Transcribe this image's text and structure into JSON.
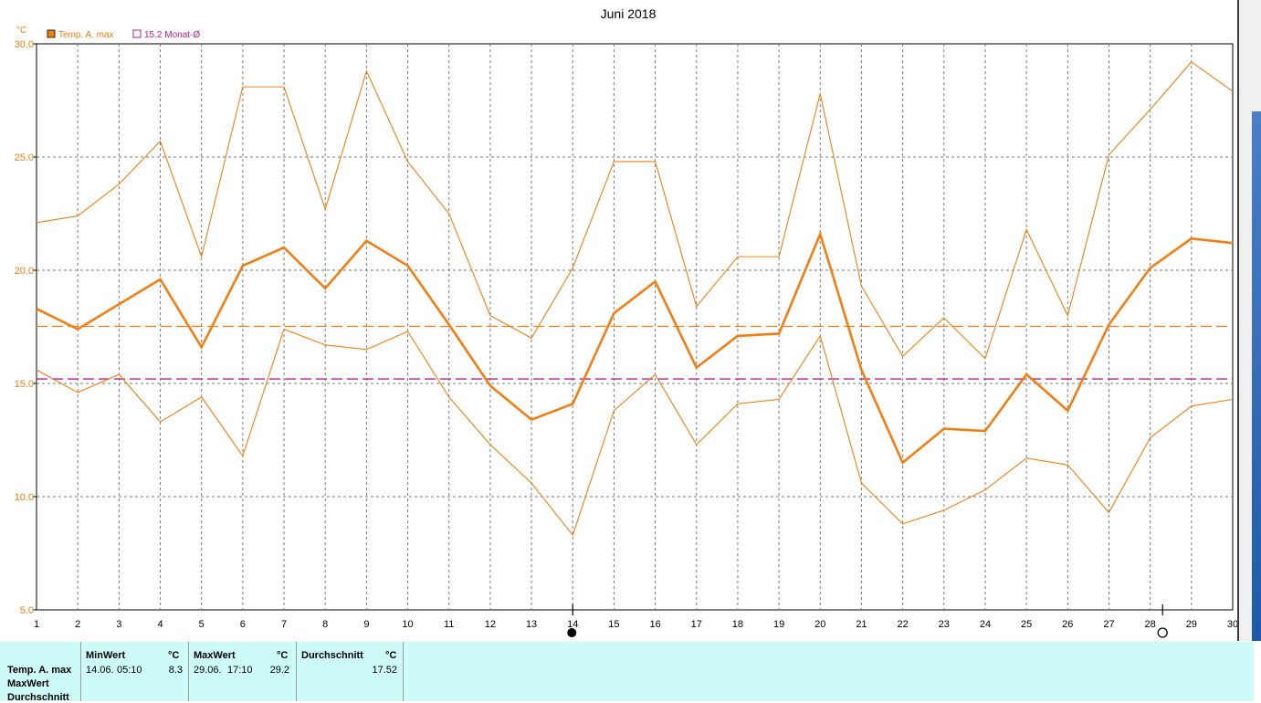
{
  "chart_data": {
    "type": "line",
    "title": "Juni 2018",
    "ylabel": "°C",
    "ylim": [
      5,
      30
    ],
    "yticks": [
      "5.0",
      "10.0",
      "15.0",
      "20.0",
      "25.0",
      "30.0"
    ],
    "x": [
      1,
      2,
      3,
      4,
      5,
      6,
      7,
      8,
      9,
      10,
      11,
      12,
      13,
      14,
      15,
      16,
      17,
      18,
      19,
      20,
      21,
      22,
      23,
      24,
      25,
      26,
      27,
      28,
      29,
      30
    ],
    "grid": true,
    "legend": "top-left",
    "series": [
      {
        "name": "Temp. A. max",
        "role": "mean",
        "color": "#f07e13",
        "values": [
          18.3,
          17.4,
          18.5,
          19.6,
          16.6,
          20.2,
          21.0,
          19.2,
          21.3,
          20.2,
          17.6,
          14.9,
          13.4,
          14.1,
          18.1,
          19.5,
          15.7,
          17.1,
          17.2,
          21.6,
          15.6,
          11.5,
          13.0,
          12.9,
          15.4,
          13.8,
          17.6,
          20.1,
          21.4,
          21.2
        ]
      },
      {
        "role": "max",
        "color": "#f07e13",
        "values": [
          22.1,
          22.4,
          23.8,
          25.7,
          20.6,
          28.1,
          28.1,
          22.7,
          28.8,
          24.8,
          22.5,
          18.0,
          17.0,
          20.1,
          24.8,
          24.8,
          18.4,
          20.6,
          20.6,
          27.8,
          19.3,
          16.2,
          17.9,
          16.1,
          21.8,
          18.0,
          25.1,
          27.1,
          29.2,
          27.9
        ]
      },
      {
        "role": "min",
        "color": "#f07e13",
        "values": [
          15.6,
          14.6,
          15.4,
          13.3,
          14.4,
          11.8,
          17.4,
          16.7,
          16.5,
          17.3,
          14.4,
          12.3,
          10.6,
          8.3,
          13.8,
          15.4,
          12.3,
          14.1,
          14.3,
          17.1,
          10.6,
          8.8,
          9.4,
          10.3,
          11.7,
          11.4,
          9.3,
          12.6,
          14.0,
          14.3
        ]
      }
    ],
    "reference_lines": [
      {
        "role": "avg-max",
        "value": 17.52,
        "color": "#f07e13"
      },
      {
        "name": "15.2 Monat-Ø",
        "value": 15.2,
        "color": "#b0208c"
      }
    ],
    "markers": [
      {
        "day": 14,
        "symbol": "min-dot"
      },
      {
        "day": 28.3,
        "symbol": "circle"
      }
    ]
  },
  "legend": {
    "items": [
      {
        "label": "Temp. A. max",
        "color": "#f07e13",
        "filled": true
      },
      {
        "label": "15.2 Monat-Ø",
        "color": "#b0208c",
        "filled": false
      }
    ]
  },
  "stats": {
    "row_labels": [
      "Temp. A. max",
      "MaxWert",
      "Durchschnitt"
    ],
    "col_min": {
      "header": "MinWert",
      "unit": "°C",
      "date": "14.06.",
      "time": "05:10",
      "value": "8.3"
    },
    "col_max": {
      "header": "MaxWert",
      "unit": "°C",
      "date": "29.06.",
      "time": "17:10",
      "value": "29.2"
    },
    "col_avg": {
      "header": "Durchschnitt",
      "unit": "°C",
      "value": "17.52"
    }
  }
}
